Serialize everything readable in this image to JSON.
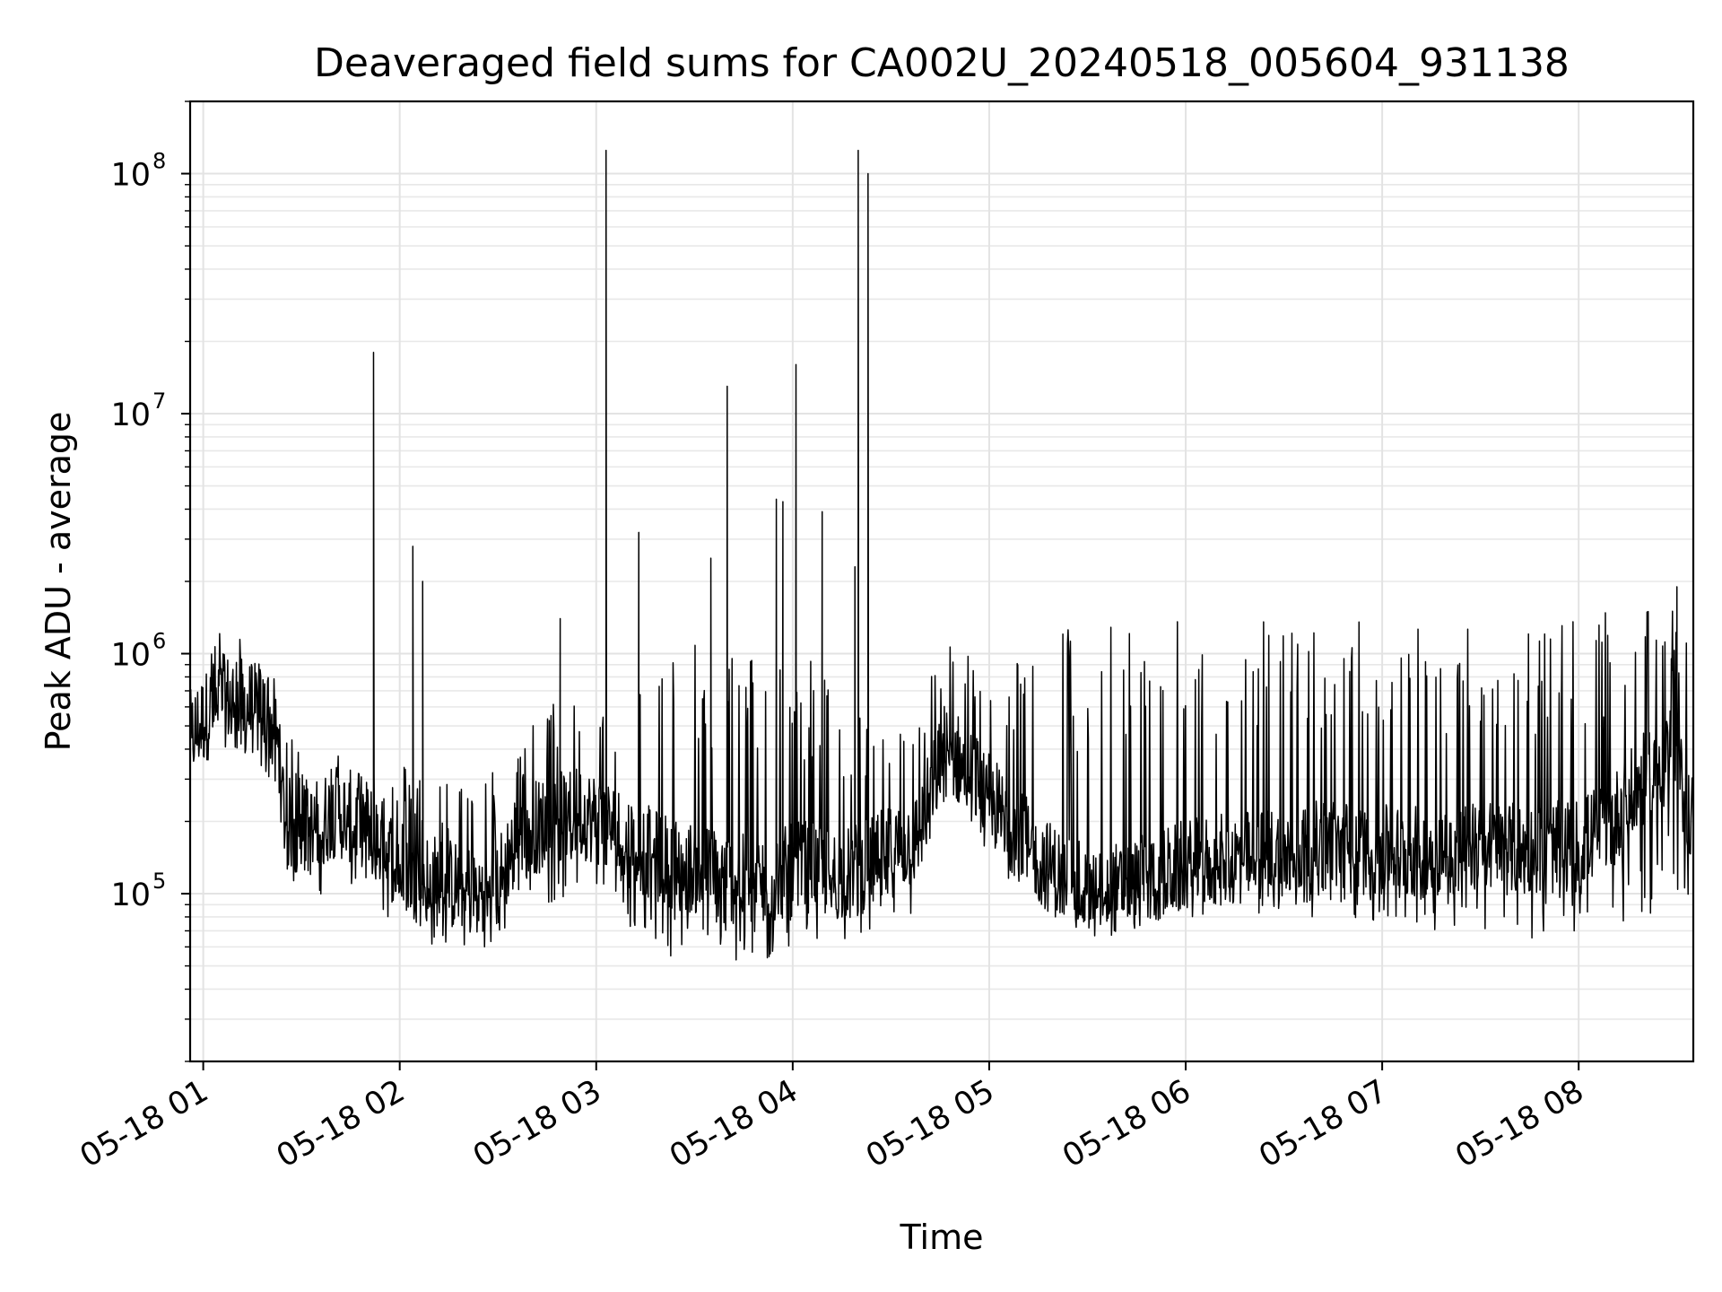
{
  "chart_data": {
    "type": "line",
    "title": "Deaveraged field sums for CA002U_20240518_005604_931138",
    "xlabel": "Time",
    "ylabel": "Peak ADU - average",
    "y_scale": "log",
    "ylim": [
      20000,
      200000000
    ],
    "xlim": [
      "2024-05-18 00:56",
      "2024-05-18 08:35"
    ],
    "grid": true,
    "x_ticks": [
      {
        "value": "2024-05-18 01:00",
        "label": "05-18 01"
      },
      {
        "value": "2024-05-18 02:00",
        "label": "05-18 02"
      },
      {
        "value": "2024-05-18 03:00",
        "label": "05-18 03"
      },
      {
        "value": "2024-05-18 04:00",
        "label": "05-18 04"
      },
      {
        "value": "2024-05-18 05:00",
        "label": "05-18 05"
      },
      {
        "value": "2024-05-18 06:00",
        "label": "05-18 06"
      },
      {
        "value": "2024-05-18 07:00",
        "label": "05-18 07"
      },
      {
        "value": "2024-05-18 08:00",
        "label": "05-18 08"
      }
    ],
    "y_ticks": [
      {
        "value": 100000,
        "base": "10",
        "exp": "5"
      },
      {
        "value": 1000000,
        "base": "10",
        "exp": "6"
      },
      {
        "value": 10000000,
        "base": "10",
        "exp": "7"
      },
      {
        "value": 100000000,
        "base": "10",
        "exp": "8"
      }
    ],
    "series": [
      {
        "color": "#000000",
        "x": [
          "2024-05-18 00:56",
          "2024-05-18 01:03",
          "2024-05-18 01:08",
          "2024-05-18 01:14",
          "2024-05-18 01:20",
          "2024-05-18 01:23",
          "2024-05-18 01:25",
          "2024-05-18 01:32",
          "2024-05-18 01:40",
          "2024-05-18 01:49",
          "2024-05-18 01:56",
          "2024-05-18 02:04",
          "2024-05-18 02:15",
          "2024-05-18 02:25",
          "2024-05-18 02:30",
          "2024-05-18 02:36",
          "2024-05-18 02:45",
          "2024-05-18 02:55",
          "2024-05-18 03:02",
          "2024-05-18 03:12",
          "2024-05-18 03:20",
          "2024-05-18 03:28",
          "2024-05-18 03:38",
          "2024-05-18 03:48",
          "2024-05-18 03:56",
          "2024-05-18 04:04",
          "2024-05-18 04:14",
          "2024-05-18 04:22",
          "2024-05-18 04:30",
          "2024-05-18 04:38",
          "2024-05-18 04:46",
          "2024-05-18 04:52",
          "2024-05-18 05:00",
          "2024-05-18 05:10",
          "2024-05-18 05:18",
          "2024-05-18 05:30",
          "2024-05-18 05:45",
          "2024-05-18 06:00",
          "2024-05-18 06:15",
          "2024-05-18 06:30",
          "2024-05-18 06:45",
          "2024-05-18 07:00",
          "2024-05-18 07:15",
          "2024-05-18 07:30",
          "2024-05-18 07:45",
          "2024-05-18 08:00",
          "2024-05-18 08:10",
          "2024-05-18 08:20",
          "2024-05-18 08:28",
          "2024-05-18 08:35"
        ],
        "y": [
          450000,
          600000,
          650000,
          600000,
          550000,
          400000,
          200000,
          180000,
          220000,
          200000,
          150000,
          120000,
          110000,
          100000,
          110000,
          180000,
          200000,
          220000,
          200000,
          160000,
          140000,
          130000,
          120000,
          110000,
          120000,
          130000,
          120000,
          130000,
          150000,
          170000,
          400000,
          350000,
          250000,
          170000,
          130000,
          100000,
          110000,
          130000,
          140000,
          150000,
          160000,
          150000,
          150000,
          160000,
          150000,
          160000,
          200000,
          300000,
          400000,
          200000
        ],
        "noise_low": [
          350000,
          450000,
          400000,
          350000,
          300000,
          250000,
          120000,
          90000,
          110000,
          90000,
          80000,
          60000,
          60000,
          60000,
          60000,
          80000,
          90000,
          100000,
          90000,
          70000,
          55000,
          55000,
          50000,
          45000,
          55000,
          60000,
          60000,
          65000,
          70000,
          80000,
          200000,
          180000,
          130000,
          100000,
          80000,
          75000,
          75000,
          80000,
          80000,
          80000,
          80000,
          75000,
          70000,
          70000,
          65000,
          65000,
          70000,
          80000,
          90000,
          70000
        ],
        "noise_high": [
          700000,
          1200000,
          1300000,
          1100000,
          900000,
          700000,
          500000,
          400000,
          400000,
          400000,
          350000,
          350000,
          300000,
          300000,
          350000,
          450000,
          600000,
          800000,
          800000,
          800000,
          1000000,
          1100000,
          1100000,
          1100000,
          1000000,
          1000000,
          800000,
          600000,
          500000,
          500000,
          1300000,
          1200000,
          900000,
          1200000,
          1300000,
          1400000,
          1400000,
          1400000,
          1400000,
          1400000,
          1400000,
          1400000,
          1400000,
          1400000,
          1400000,
          1400000,
          1500000,
          1500000,
          1600000,
          1000000
        ],
        "spikes": [
          {
            "x": "2024-05-18 01:52",
            "y": 18000000
          },
          {
            "x": "2024-05-18 02:04",
            "y": 2800000
          },
          {
            "x": "2024-05-18 02:07",
            "y": 2000000
          },
          {
            "x": "2024-05-18 02:49",
            "y": 1400000
          },
          {
            "x": "2024-05-18 03:03",
            "y": 125000000
          },
          {
            "x": "2024-05-18 03:13",
            "y": 3200000
          },
          {
            "x": "2024-05-18 03:35",
            "y": 2500000
          },
          {
            "x": "2024-05-18 03:40",
            "y": 13000000
          },
          {
            "x": "2024-05-18 03:55",
            "y": 4400000
          },
          {
            "x": "2024-05-18 03:57",
            "y": 4300000
          },
          {
            "x": "2024-05-18 04:01",
            "y": 16000000
          },
          {
            "x": "2024-05-18 04:09",
            "y": 3900000
          },
          {
            "x": "2024-05-18 04:19",
            "y": 2300000
          },
          {
            "x": "2024-05-18 04:20",
            "y": 125000000
          },
          {
            "x": "2024-05-18 04:23",
            "y": 100000000
          },
          {
            "x": "2024-05-18 08:30",
            "y": 1900000
          }
        ]
      }
    ]
  }
}
